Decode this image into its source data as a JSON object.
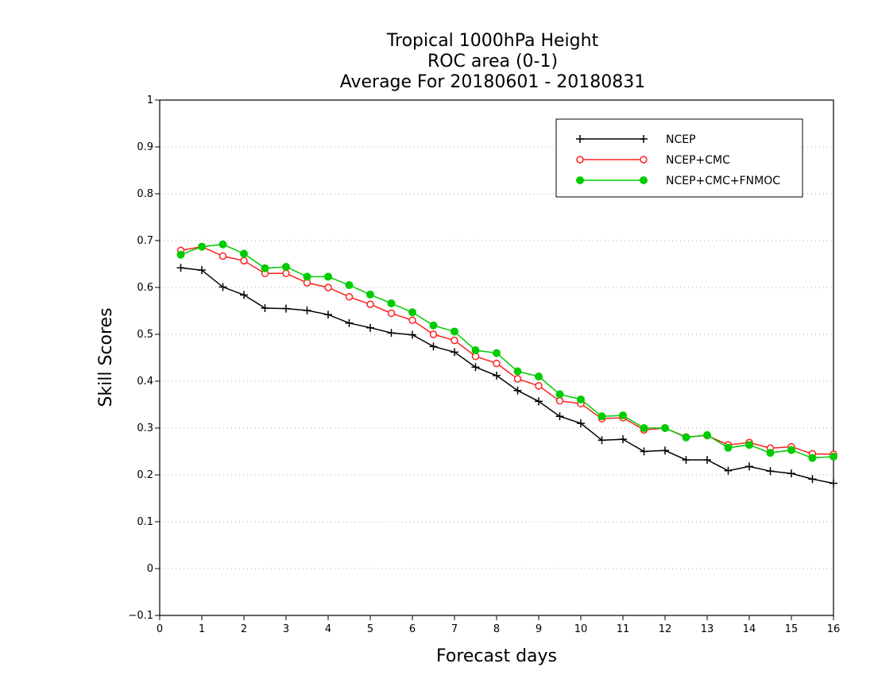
{
  "chart_data": {
    "type": "line",
    "title_lines": [
      "Tropical 1000hPa Height",
      "ROC area (0-1)",
      "Average For 20180601 - 20180831"
    ],
    "xlabel": "Forecast days",
    "ylabel": "Skill Scores",
    "xlim": [
      0,
      16
    ],
    "ylim": [
      -0.1,
      1
    ],
    "x_ticks": [
      "0",
      "1",
      "2",
      "3",
      "4",
      "5",
      "6",
      "7",
      "8",
      "9",
      "10",
      "11",
      "12",
      "13",
      "14",
      "15",
      "16"
    ],
    "y_ticks": [
      "−0.1",
      "0",
      "0.1",
      "0.2",
      "0.3",
      "0.4",
      "0.5",
      "0.6",
      "0.7",
      "0.8",
      "0.9",
      "1"
    ],
    "grid": "horizontal-dotted",
    "legend_position": "top-right",
    "x": [
      0.5,
      1,
      1.5,
      2,
      2.5,
      3,
      3.5,
      4,
      4.5,
      5,
      5.5,
      6,
      6.5,
      7,
      7.5,
      8,
      8.5,
      9,
      9.5,
      10,
      10.5,
      11,
      11.5,
      12,
      12.5,
      13,
      13.5,
      14,
      14.5,
      15,
      15.5,
      16
    ],
    "series": [
      {
        "name": "NCEP",
        "color": "#000000",
        "marker": "plus",
        "values": [
          0.642,
          0.637,
          0.601,
          0.584,
          0.556,
          0.555,
          0.551,
          0.542,
          0.524,
          0.514,
          0.503,
          0.499,
          0.474,
          0.462,
          0.43,
          0.412,
          0.38,
          0.357,
          0.325,
          0.31,
          0.274,
          0.276,
          0.25,
          0.252,
          0.232,
          0.232,
          0.209,
          0.218,
          0.208,
          0.203,
          0.191,
          0.182
        ]
      },
      {
        "name": "NCEP+CMC",
        "color": "#ff2020",
        "marker": "open-circle",
        "values": [
          0.679,
          0.687,
          0.667,
          0.657,
          0.63,
          0.63,
          0.61,
          0.6,
          0.58,
          0.564,
          0.545,
          0.53,
          0.5,
          0.487,
          0.453,
          0.438,
          0.405,
          0.39,
          0.358,
          0.352,
          0.32,
          0.322,
          0.296,
          0.3,
          0.281,
          0.284,
          0.264,
          0.269,
          0.257,
          0.26,
          0.245,
          0.244
        ]
      },
      {
        "name": "NCEP+CMC+FNMOC",
        "color": "#00cc00",
        "marker": "filled-circle",
        "values": [
          0.67,
          0.687,
          0.692,
          0.672,
          0.641,
          0.644,
          0.623,
          0.623,
          0.605,
          0.585,
          0.566,
          0.547,
          0.519,
          0.506,
          0.466,
          0.46,
          0.421,
          0.41,
          0.372,
          0.361,
          0.325,
          0.327,
          0.3,
          0.3,
          0.28,
          0.285,
          0.258,
          0.264,
          0.247,
          0.253,
          0.236,
          0.239
        ]
      }
    ]
  }
}
